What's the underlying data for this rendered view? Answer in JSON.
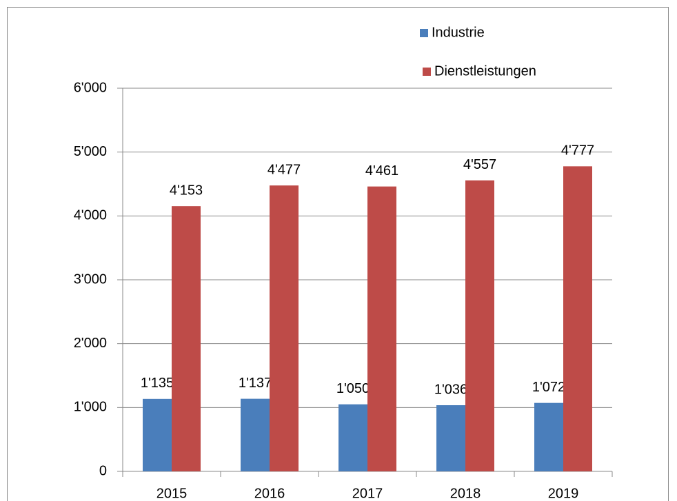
{
  "chart_data": {
    "type": "bar",
    "categories": [
      "2015",
      "2016",
      "2017",
      "2018",
      "2019"
    ],
    "series": [
      {
        "name": "Industrie",
        "color": "#4a7ebb",
        "values": [
          1135,
          1137,
          1050,
          1036,
          1072
        ],
        "value_labels": [
          "1'135",
          "1'137",
          "1'050",
          "1'036",
          "1'072"
        ]
      },
      {
        "name": "Dienstleistungen",
        "color": "#be4b48",
        "values": [
          4153,
          4477,
          4461,
          4557,
          4777
        ],
        "value_labels": [
          "4'153",
          "4'477",
          "4'461",
          "4'557",
          "4'777"
        ]
      }
    ],
    "ylim": [
      0,
      6000
    ],
    "yticks": [
      0,
      {
        "value": 1000,
        "label": "1'000"
      },
      {
        "value": 2000,
        "label": "2'000"
      },
      {
        "value": 3000,
        "label": "3'000"
      },
      {
        "value": 4000,
        "label": "4'000"
      },
      {
        "value": 5000,
        "label": "5'000"
      },
      {
        "value": 6000,
        "label": "6'000"
      }
    ],
    "grid": true,
    "legend": "top-right"
  }
}
